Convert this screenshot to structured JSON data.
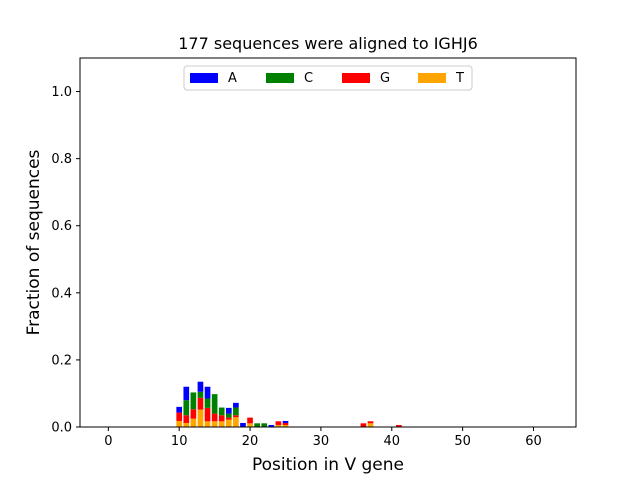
{
  "chart_data": {
    "type": "bar",
    "stacked": true,
    "title": "177 sequences were aligned to IGHJ6",
    "xlabel": "Position in V gene",
    "ylabel": "Fraction of sequences",
    "xlim": [
      -4,
      66
    ],
    "ylim": [
      0,
      1.1
    ],
    "xticks": [
      0,
      10,
      20,
      30,
      40,
      50,
      60
    ],
    "yticks": [
      0.0,
      0.2,
      0.4,
      0.6,
      0.8,
      1.0
    ],
    "ytick_labels": [
      "0.0",
      "0.2",
      "0.4",
      "0.6",
      "0.8",
      "1.0"
    ],
    "legend_position": "top-center",
    "series": [
      {
        "name": "T",
        "color": "#FFA500",
        "x": [
          10,
          11,
          12,
          13,
          14,
          15,
          16,
          17,
          18,
          19,
          20,
          21,
          22,
          23,
          24,
          25,
          36,
          37,
          41
        ],
        "values": [
          0.018,
          0.012,
          0.025,
          0.052,
          0.017,
          0.017,
          0.017,
          0.022,
          0.029,
          0.0,
          0.011,
          0.0,
          0.0,
          0.0,
          0.006,
          0.006,
          0.0,
          0.011,
          0.0
        ]
      },
      {
        "name": "G",
        "color": "#FF0000",
        "x": [
          10,
          11,
          12,
          13,
          14,
          15,
          16,
          17,
          18,
          19,
          20,
          21,
          22,
          23,
          24,
          25,
          36,
          37,
          41
        ],
        "values": [
          0.025,
          0.023,
          0.028,
          0.035,
          0.04,
          0.023,
          0.018,
          0.006,
          0.006,
          0.0,
          0.017,
          0.0,
          0.0,
          0.0,
          0.011,
          0.006,
          0.011,
          0.006,
          0.006
        ]
      },
      {
        "name": "C",
        "color": "#008000",
        "x": [
          10,
          11,
          12,
          13,
          14,
          15,
          16,
          17,
          18,
          19,
          20,
          21,
          22,
          23,
          24,
          25,
          36,
          37,
          41
        ],
        "values": [
          0.0,
          0.045,
          0.05,
          0.018,
          0.028,
          0.058,
          0.023,
          0.012,
          0.023,
          0.0,
          0.0,
          0.011,
          0.011,
          0.0,
          0.0,
          0.0,
          0.0,
          0.0,
          0.0
        ]
      },
      {
        "name": "A",
        "color": "#0000FF",
        "x": [
          10,
          11,
          12,
          13,
          14,
          15,
          16,
          17,
          18,
          19,
          20,
          21,
          22,
          23,
          24,
          25,
          36,
          37,
          41
        ],
        "values": [
          0.017,
          0.04,
          0.0,
          0.03,
          0.035,
          0.0,
          0.0,
          0.017,
          0.014,
          0.012,
          0.0,
          0.0,
          0.0,
          0.006,
          0.0,
          0.006,
          0.0,
          0.0,
          0.0
        ]
      }
    ],
    "legend_order": [
      "A",
      "C",
      "G",
      "T"
    ]
  }
}
